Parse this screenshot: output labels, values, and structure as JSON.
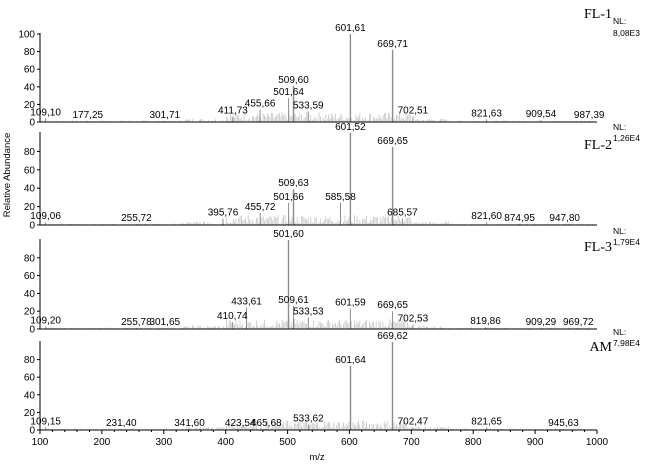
{
  "chart_data": {
    "type": "stacked-mass-spectra",
    "xlabel": "m/z",
    "ylabel": "Relative Abundance",
    "xlim": [
      100,
      1000
    ],
    "ylim": [
      0,
      100
    ],
    "x_ticks": [
      "100",
      "200",
      "300",
      "400",
      "500",
      "600",
      "700",
      "800",
      "900",
      "1000"
    ],
    "y_ticks": [
      "0",
      "20",
      "40",
      "60",
      "80",
      "100"
    ],
    "y_ticks_inner": [
      "0",
      "20",
      "40",
      "60",
      "80"
    ],
    "panels": [
      {
        "name": "FL-1",
        "nl_label": "NL:",
        "nl_value": "8,08E3",
        "peaks": [
          {
            "mz": 109.1,
            "label": "109,10",
            "intensity": 4
          },
          {
            "mz": 177.25,
            "label": "177,25",
            "intensity": 1
          },
          {
            "mz": 301.71,
            "label": "301,71",
            "intensity": 1
          },
          {
            "mz": 411.73,
            "label": "411,73",
            "intensity": 6
          },
          {
            "mz": 455.66,
            "label": "455,66",
            "intensity": 14
          },
          {
            "mz": 501.64,
            "label": "501,64",
            "intensity": 27
          },
          {
            "mz": 509.6,
            "label": "509,60",
            "intensity": 41
          },
          {
            "mz": 533.59,
            "label": "533,59",
            "intensity": 12
          },
          {
            "mz": 601.61,
            "label": "601,61",
            "intensity": 100
          },
          {
            "mz": 669.71,
            "label": "669,71",
            "intensity": 82
          },
          {
            "mz": 702.51,
            "label": "702,51",
            "intensity": 6
          },
          {
            "mz": 821.63,
            "label": "821,63",
            "intensity": 3
          },
          {
            "mz": 909.54,
            "label": "909,54",
            "intensity": 2
          },
          {
            "mz": 987.39,
            "label": "987,39",
            "intensity": 1
          }
        ]
      },
      {
        "name": "FL-2",
        "nl_label": "NL:",
        "nl_value": "1,26E4",
        "peaks": [
          {
            "mz": 109.06,
            "label": "109,06",
            "intensity": 3
          },
          {
            "mz": 255.72,
            "label": "255,72",
            "intensity": 1
          },
          {
            "mz": 395.76,
            "label": "395,76",
            "intensity": 7
          },
          {
            "mz": 455.72,
            "label": "455,72",
            "intensity": 13
          },
          {
            "mz": 501.66,
            "label": "501,66",
            "intensity": 24
          },
          {
            "mz": 509.63,
            "label": "509,63",
            "intensity": 39
          },
          {
            "mz": 585.58,
            "label": "585,58",
            "intensity": 24
          },
          {
            "mz": 601.52,
            "label": "601,52",
            "intensity": 100
          },
          {
            "mz": 669.65,
            "label": "669,65",
            "intensity": 85
          },
          {
            "mz": 685.57,
            "label": "685,57",
            "intensity": 7
          },
          {
            "mz": 821.6,
            "label": "821,60",
            "intensity": 3
          },
          {
            "mz": 874.95,
            "label": "874,95",
            "intensity": 1
          },
          {
            "mz": 947.8,
            "label": "947,80",
            "intensity": 1
          }
        ]
      },
      {
        "name": "FL-3",
        "nl_label": "NL:",
        "nl_value": "1,79E4",
        "peaks": [
          {
            "mz": 109.2,
            "label": "109,20",
            "intensity": 3
          },
          {
            "mz": 255.78,
            "label": "255,78",
            "intensity": 1
          },
          {
            "mz": 301.65,
            "label": "301,65",
            "intensity": 1
          },
          {
            "mz": 410.74,
            "label": "410,74",
            "intensity": 8
          },
          {
            "mz": 433.61,
            "label": "433,61",
            "intensity": 24
          },
          {
            "mz": 501.6,
            "label": "501,60",
            "intensity": 100
          },
          {
            "mz": 509.61,
            "label": "509,61",
            "intensity": 26
          },
          {
            "mz": 533.53,
            "label": "533,53",
            "intensity": 13
          },
          {
            "mz": 601.59,
            "label": "601,59",
            "intensity": 23
          },
          {
            "mz": 669.65,
            "label": "669,65",
            "intensity": 20
          },
          {
            "mz": 702.53,
            "label": "702,53",
            "intensity": 5
          },
          {
            "mz": 819.86,
            "label": "819,86",
            "intensity": 2
          },
          {
            "mz": 909.29,
            "label": "909,29",
            "intensity": 1
          },
          {
            "mz": 969.72,
            "label": "969,72",
            "intensity": 1
          }
        ]
      },
      {
        "name": "AM",
        "nl_label": "NL:",
        "nl_value": "7,98E4",
        "peaks": [
          {
            "mz": 109.15,
            "label": "109,15",
            "intensity": 3
          },
          {
            "mz": 231.4,
            "label": "231,40",
            "intensity": 1
          },
          {
            "mz": 341.6,
            "label": "341,60",
            "intensity": 1
          },
          {
            "mz": 423.54,
            "label": "423,54",
            "intensity": 1
          },
          {
            "mz": 465.68,
            "label": "465,68",
            "intensity": 1
          },
          {
            "mz": 533.62,
            "label": "533,62",
            "intensity": 6
          },
          {
            "mz": 601.64,
            "label": "601,64",
            "intensity": 73
          },
          {
            "mz": 669.62,
            "label": "669,62",
            "intensity": 100
          },
          {
            "mz": 702.47,
            "label": "702,47",
            "intensity": 3
          },
          {
            "mz": 821.65,
            "label": "821,65",
            "intensity": 3
          },
          {
            "mz": 945.63,
            "label": "945,63",
            "intensity": 1
          }
        ]
      }
    ]
  }
}
